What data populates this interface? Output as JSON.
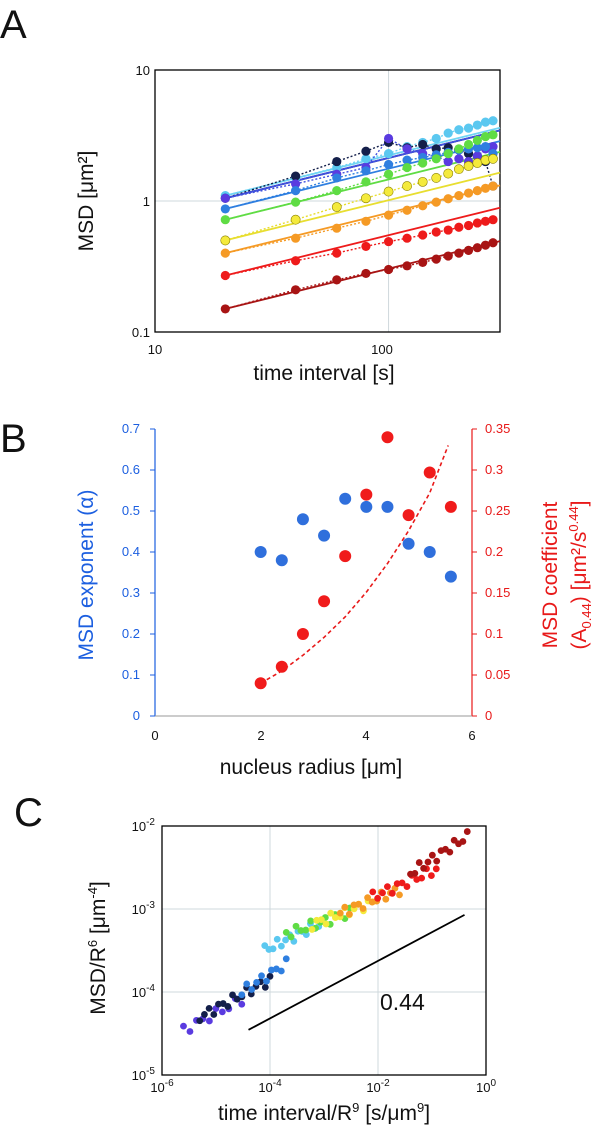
{
  "panels": {
    "a": "A",
    "b": "B",
    "c": "C"
  },
  "chart_data": [
    {
      "id": "A",
      "type": "scatter",
      "xscale": "log",
      "yscale": "log",
      "xlim": [
        10,
        300
      ],
      "ylim": [
        0.1,
        10
      ],
      "xticks": [
        "10",
        "100"
      ],
      "yticks": [
        "0.1",
        "1",
        "10"
      ],
      "xlabel": "time interval [s]",
      "ylabel": "MSD [μm²]",
      "x": [
        20,
        40,
        60,
        80,
        100,
        120,
        140,
        160,
        180,
        200,
        220,
        240,
        260,
        280
      ],
      "series": [
        {
          "name": "light blue",
          "color": "#5bc8f0",
          "line_color": "#6fd4f4",
          "y": [
            1.1,
            1.5,
            1.8,
            2.1,
            2.3,
            2.6,
            2.8,
            3.0,
            3.3,
            3.5,
            3.6,
            3.8,
            4.0,
            4.1
          ]
        },
        {
          "name": "navy",
          "color": "#141f4a",
          "line_color": "#141f4a",
          "y": [
            1.05,
            1.55,
            2.0,
            2.4,
            2.8,
            2.55,
            2.7,
            2.5,
            2.55,
            2.45,
            2.3,
            2.2,
            2.0,
            1.3
          ]
        },
        {
          "name": "violet",
          "color": "#5a3be0",
          "line_color": "#4050e0",
          "y": [
            1.05,
            1.35,
            1.6,
            1.8,
            3.0,
            2.5,
            2.3,
            2.2,
            2.0,
            2.1,
            2.0,
            2.2,
            2.5,
            2.6
          ]
        },
        {
          "name": "blue",
          "color": "#2f7fe0",
          "line_color": "#2f7fe0",
          "y": [
            0.87,
            1.2,
            1.5,
            1.7,
            1.9,
            2.05,
            2.15,
            2.25,
            2.35,
            2.45,
            2.5,
            2.55,
            2.6,
            2.3
          ]
        },
        {
          "name": "lime",
          "color": "#5fdc44",
          "line_color": "#5fdc44",
          "y": [
            0.72,
            0.98,
            1.2,
            1.4,
            1.6,
            1.8,
            1.95,
            2.1,
            2.3,
            2.5,
            2.7,
            2.9,
            3.1,
            3.2
          ]
        },
        {
          "name": "yellow",
          "color": "#f4ea3c",
          "line_color": "#e8de30",
          "y": [
            0.5,
            0.72,
            0.9,
            1.05,
            1.18,
            1.3,
            1.4,
            1.5,
            1.62,
            1.75,
            1.85,
            1.95,
            2.05,
            2.1
          ]
        },
        {
          "name": "orange",
          "color": "#f59a25",
          "line_color": "#f59a25",
          "y": [
            0.4,
            0.52,
            0.62,
            0.7,
            0.78,
            0.85,
            0.92,
            0.98,
            1.04,
            1.1,
            1.15,
            1.2,
            1.25,
            1.3
          ]
        },
        {
          "name": "red",
          "color": "#ee1b1b",
          "line_color": "#ee1b1b",
          "y": [
            0.27,
            0.35,
            0.4,
            0.45,
            0.49,
            0.52,
            0.55,
            0.58,
            0.6,
            0.63,
            0.65,
            0.68,
            0.7,
            0.72
          ]
        },
        {
          "name": "dark red",
          "color": "#a81414",
          "line_color": "#a81414",
          "y": [
            0.15,
            0.21,
            0.25,
            0.28,
            0.3,
            0.32,
            0.34,
            0.36,
            0.38,
            0.4,
            0.42,
            0.44,
            0.46,
            0.48
          ]
        }
      ]
    },
    {
      "id": "B",
      "type": "scatter",
      "xlabel": "nucleus radius [μm]",
      "xlim": [
        0,
        6
      ],
      "xticks": [
        "0",
        "2",
        "4",
        "6"
      ],
      "ylabel_left": "MSD exponent (α)",
      "ylim_left": [
        0,
        0.7
      ],
      "yticks_left": [
        "0",
        "0.1",
        "0.2",
        "0.3",
        "0.4",
        "0.5",
        "0.6",
        "0.7"
      ],
      "ylabel_right_line1": "MSD coefficient",
      "ylabel_right_line2": "(A",
      "ylabel_right_sub": "0.44",
      "ylabel_right_line3": ") [μm²/s",
      "ylabel_right_sup": "0.44",
      "ylabel_right_end": "]",
      "ylim_right": [
        0,
        0.35
      ],
      "yticks_right": [
        "0",
        "0.05",
        "0.1",
        "0.15",
        "0.2",
        "0.25",
        "0.3",
        "0.35"
      ],
      "left_color": "#1c5fe0",
      "right_color": "#e81919",
      "series": [
        {
          "name": "MSD exponent (α)",
          "axis": "left",
          "color": "#2f6fdc",
          "x": [
            2.0,
            2.4,
            2.8,
            3.2,
            3.6,
            4.0,
            4.4,
            4.8,
            5.2,
            5.6
          ],
          "y": [
            0.4,
            0.38,
            0.48,
            0.44,
            0.53,
            0.51,
            0.51,
            0.42,
            0.4,
            0.34
          ]
        },
        {
          "name": "MSD coefficient (A0.44)",
          "axis": "right",
          "color": "#f01b1b",
          "x": [
            2.0,
            2.4,
            2.8,
            3.2,
            3.6,
            4.0,
            4.4,
            4.8,
            5.2,
            5.6
          ],
          "y": [
            0.04,
            0.06,
            0.1,
            0.14,
            0.195,
            0.27,
            0.34,
            0.245,
            0.297,
            0.255
          ]
        }
      ],
      "fit": {
        "color": "#e81919",
        "style": "dashed",
        "x": [
          2.0,
          2.4,
          2.8,
          3.2,
          3.6,
          4.0,
          4.4,
          4.8,
          5.2,
          5.55
        ],
        "y": [
          0.04,
          0.055,
          0.074,
          0.096,
          0.121,
          0.151,
          0.186,
          0.226,
          0.272,
          0.33
        ]
      }
    },
    {
      "id": "C",
      "type": "scatter",
      "xscale": "log",
      "yscale": "log",
      "xlim": [
        1e-06,
        1
      ],
      "ylim": [
        1e-05,
        0.01
      ],
      "xticks": [
        {
          "base": "10",
          "exp": "-6"
        },
        {
          "base": "10",
          "exp": "-4"
        },
        {
          "base": "10",
          "exp": "-2"
        },
        {
          "base": "10",
          "exp": "0"
        }
      ],
      "yticks": [
        {
          "base": "10",
          "exp": "-5"
        },
        {
          "base": "10",
          "exp": "-4"
        },
        {
          "base": "10",
          "exp": "-3"
        },
        {
          "base": "10",
          "exp": "-2"
        }
      ],
      "xlabel_main": "time interval/R",
      "xlabel_sup": "9",
      "xlabel_tail": " [s/μm",
      "xlabel_sup2": "9",
      "xlabel_end": "]",
      "ylabel_main": "MSD/R",
      "ylabel_sup": "6",
      "ylabel_tail": " [μm",
      "ylabel_sup2": "-4",
      "ylabel_end": "]",
      "slope_label": "0.44",
      "slope_line": {
        "x": [
          4e-05,
          0.4
        ],
        "y": [
          3.5e-05,
          0.00085
        ]
      },
      "series": [
        {
          "name": "violet",
          "color": "#5a3be0",
          "x_range": [
            2.5e-06,
            3e-05
          ],
          "y_range": [
            3.5e-05,
            8e-05
          ],
          "n": 10
        },
        {
          "name": "navy",
          "color": "#141f4a",
          "x_range": [
            5e-06,
            0.0001
          ],
          "y_range": [
            5e-05,
            0.00014
          ],
          "n": 16
        },
        {
          "name": "blue",
          "color": "#2f7fe0",
          "x_range": [
            3e-05,
            0.0002
          ],
          "y_range": [
            0.0001,
            0.00022
          ],
          "n": 10
        },
        {
          "name": "light blue",
          "color": "#5bc8f0",
          "x_range": [
            8e-05,
            0.0008
          ],
          "y_range": [
            0.00032,
            0.00065
          ],
          "n": 14
        },
        {
          "name": "lime",
          "color": "#5fdc44",
          "x_range": [
            0.0002,
            0.003
          ],
          "y_range": [
            0.0005,
            0.0009
          ],
          "n": 14
        },
        {
          "name": "yellow",
          "color": "#f4ea3c",
          "x_range": [
            0.0006,
            0.008
          ],
          "y_range": [
            0.00065,
            0.0012
          ],
          "n": 14
        },
        {
          "name": "orange",
          "color": "#f59a25",
          "x_range": [
            0.002,
            0.025
          ],
          "y_range": [
            0.0009,
            0.0017
          ],
          "n": 14
        },
        {
          "name": "red",
          "color": "#ee1b1b",
          "x_range": [
            0.008,
            0.12
          ],
          "y_range": [
            0.0014,
            0.003
          ],
          "n": 14
        },
        {
          "name": "dark red",
          "color": "#a81414",
          "x_range": [
            0.04,
            0.45
          ],
          "y_range": [
            0.0027,
            0.0075
          ],
          "n": 14
        }
      ]
    }
  ]
}
